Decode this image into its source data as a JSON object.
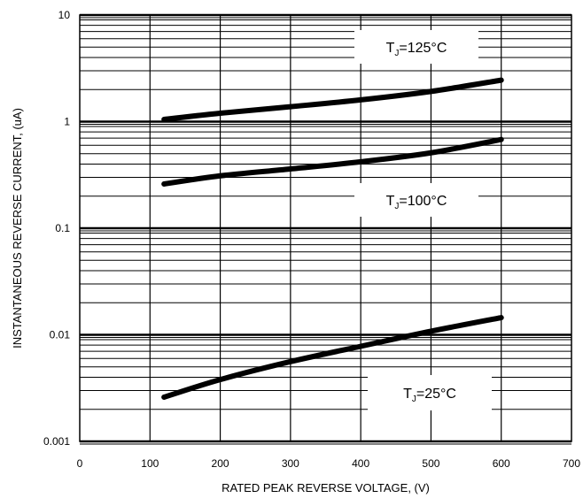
{
  "chart_data": {
    "type": "line",
    "title": "",
    "xlabel": "RATED PEAK REVERSE VOLTAGE, (V)",
    "ylabel": "INSTANTANEOUS REVERSE CURRENT, (uA)",
    "xlim": [
      0,
      700
    ],
    "ylim": [
      0.001,
      10
    ],
    "yscale": "log",
    "grid": true,
    "x_ticks": [
      "0",
      "100",
      "200",
      "300",
      "400",
      "500",
      "600",
      "700"
    ],
    "y_ticks": [
      "0.001",
      "0.01",
      "0.1",
      "1",
      "10"
    ],
    "series": [
      {
        "name": "TJ=125°C",
        "label_main": "T",
        "label_sub": "J",
        "label_rest": "=125°C",
        "x": [
          120,
          200,
          300,
          400,
          500,
          600
        ],
        "y": [
          1.05,
          1.2,
          1.38,
          1.6,
          1.92,
          2.45
        ]
      },
      {
        "name": "TJ=100°C",
        "label_main": "T",
        "label_sub": "J",
        "label_rest": "=100°C",
        "x": [
          120,
          200,
          300,
          400,
          500,
          600
        ],
        "y": [
          0.26,
          0.31,
          0.36,
          0.42,
          0.51,
          0.68
        ]
      },
      {
        "name": "TJ=25°C",
        "label_main": "T",
        "label_sub": "J",
        "label_rest": "=25°C",
        "x": [
          120,
          200,
          300,
          400,
          500,
          600
        ],
        "y": [
          0.0026,
          0.0038,
          0.0056,
          0.0078,
          0.0108,
          0.0145
        ]
      }
    ]
  }
}
